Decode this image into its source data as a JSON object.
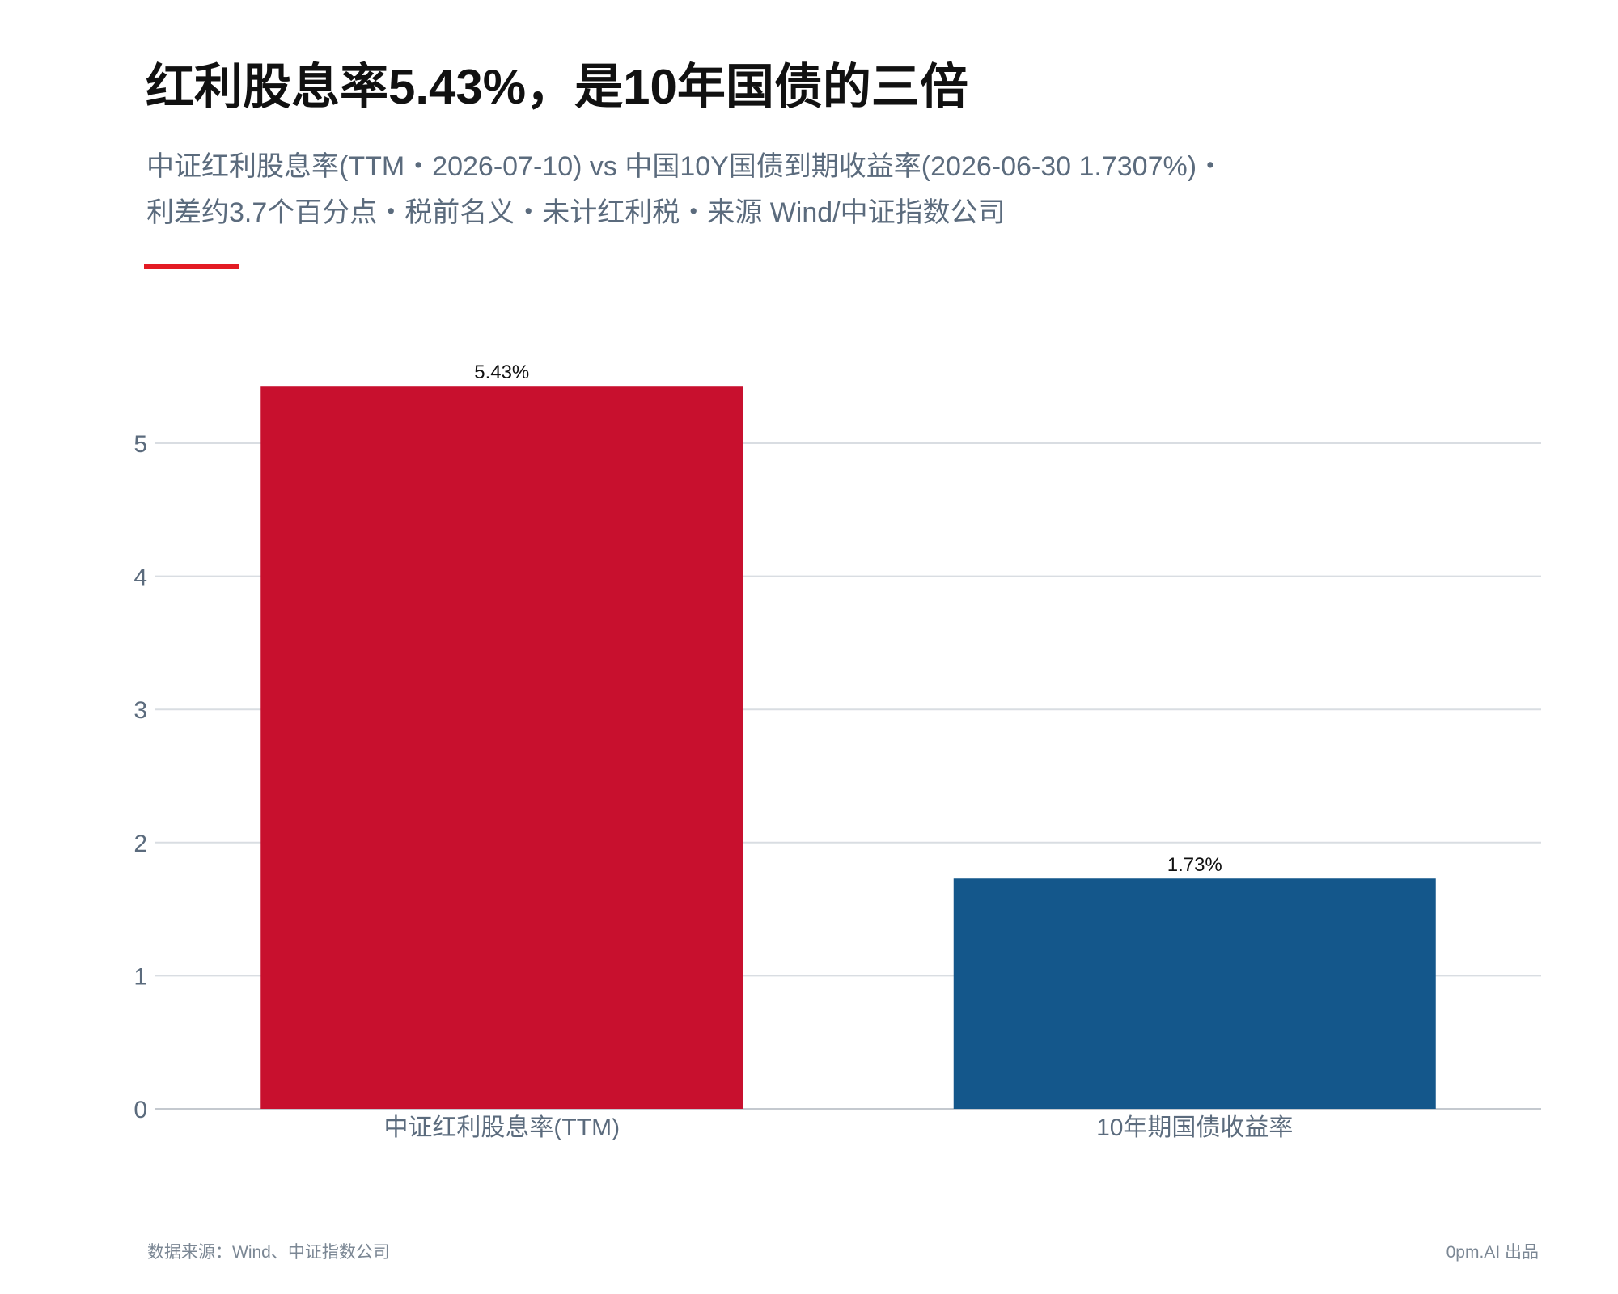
{
  "header": {
    "title": "红利股息率5.43%，是10年国债的三倍",
    "subtitle_line1": "中证红利股息率(TTM・2026-07-10) vs 中国10Y国债到期收益率(2026-06-30 1.7307%)・",
    "subtitle_line2": "利差约3.7个百分点・税前名义・未计红利税・来源 Wind/中证指数公司"
  },
  "colors": {
    "accent": "#e31b23",
    "dividend_bar": "#c8102e",
    "bond_bar": "#14578b",
    "grid": "#d9dde2",
    "axis_text": "#5b6b7d"
  },
  "chart_data": {
    "type": "bar",
    "categories": [
      "中证红利股息率(TTM)",
      "10年期国债收益率"
    ],
    "values": [
      5.43,
      1.73
    ],
    "data_labels": [
      "5.43%",
      "1.73%"
    ],
    "bar_colors": [
      "#c8102e",
      "#14578b"
    ],
    "title": "红利股息率5.43%，是10年国债的三倍",
    "xlabel": "",
    "ylabel": "",
    "ylim": [
      0,
      5.5
    ],
    "yticks": [
      0,
      1,
      2,
      3,
      4,
      5
    ],
    "grid": true,
    "legend": "none"
  },
  "footer": {
    "source": "数据来源：Wind、中证指数公司",
    "credit": "0pm.AI 出品"
  }
}
